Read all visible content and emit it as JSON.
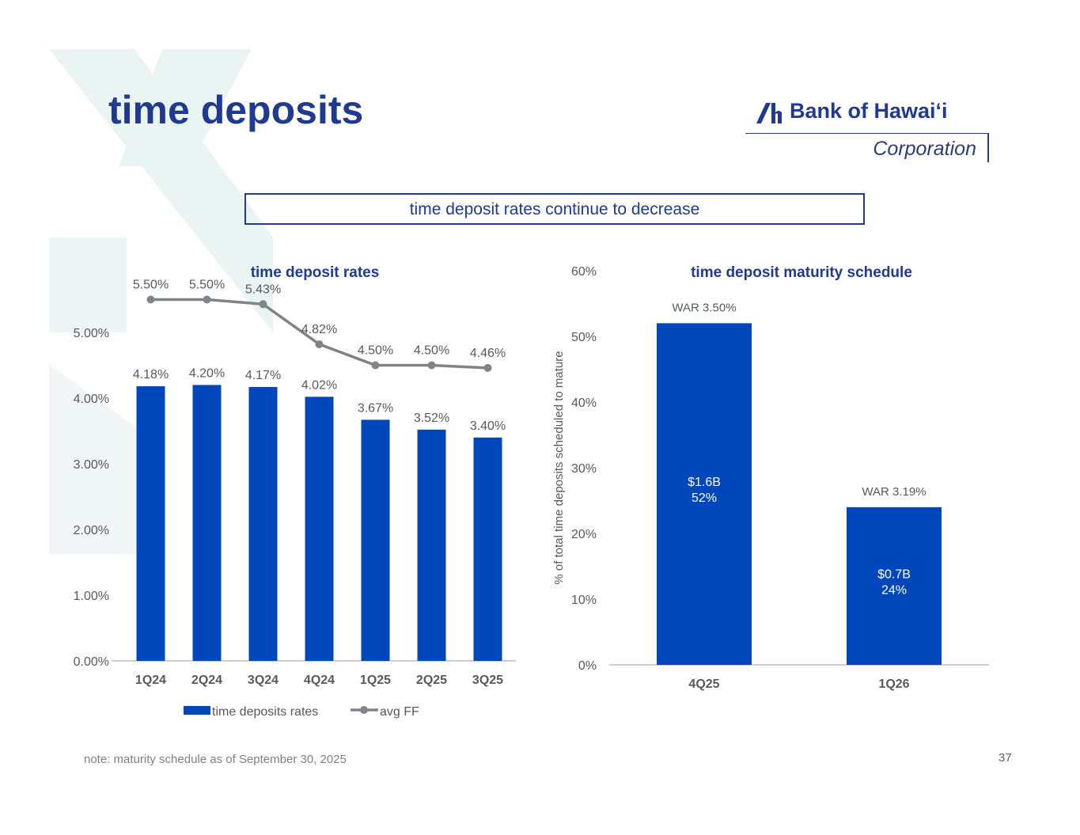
{
  "page": {
    "title": "time deposits",
    "banner": "time deposit rates continue to decrease",
    "note": "note: maturity schedule as of September 30, 2025",
    "page_number": "37"
  },
  "logo": {
    "name": "Bank of Hawaiʻi",
    "subtitle": "Corporation"
  },
  "colors": {
    "accent_blue": "#0047BB",
    "title_blue": "#1F3A8F",
    "line_gray": "#7F8488",
    "label_gray": "#595959",
    "bg_mark": "#EAF4F3"
  },
  "chart_data": [
    {
      "type": "bar",
      "title": "time deposit rates",
      "categories": [
        "1Q24",
        "2Q24",
        "3Q24",
        "4Q24",
        "1Q25",
        "2Q25",
        "3Q25"
      ],
      "ylim": [
        0,
        5.5
      ],
      "yticks": [
        0,
        1,
        2,
        3,
        4,
        5
      ],
      "ytick_labels": [
        "0.00%",
        "1.00%",
        "2.00%",
        "3.00%",
        "4.00%",
        "5.00%"
      ],
      "grid": false,
      "legend": "bottom",
      "series": [
        {
          "name": "time deposits rates",
          "type": "bar",
          "values": [
            4.18,
            4.2,
            4.17,
            4.02,
            3.67,
            3.52,
            3.4
          ],
          "labels": [
            "4.18%",
            "4.20%",
            "4.17%",
            "4.02%",
            "3.67%",
            "3.52%",
            "3.40%"
          ]
        },
        {
          "name": "avg FF",
          "type": "line",
          "values": [
            5.5,
            5.5,
            5.43,
            4.82,
            4.5,
            4.5,
            4.46
          ],
          "labels": [
            "5.50%",
            "5.50%",
            "5.43%",
            "4.82%",
            "4.50%",
            "4.50%",
            "4.46%"
          ]
        }
      ]
    },
    {
      "type": "bar",
      "title": "time deposit maturity schedule",
      "ylabel": "% of total time deposits scheduled to mature",
      "categories": [
        "4Q25",
        "1Q26"
      ],
      "values": [
        52,
        24
      ],
      "ylim": [
        0,
        60
      ],
      "yticks": [
        0,
        10,
        20,
        30,
        40,
        50,
        60
      ],
      "ytick_labels": [
        "0%",
        "10%",
        "20%",
        "30%",
        "40%",
        "50%",
        "60%"
      ],
      "grid": false,
      "inside_labels": [
        [
          "$1.6B",
          "52%"
        ],
        [
          "$0.7B",
          "24%"
        ]
      ],
      "top_labels": [
        "WAR  3.50%",
        "WAR 3.19%"
      ]
    }
  ]
}
